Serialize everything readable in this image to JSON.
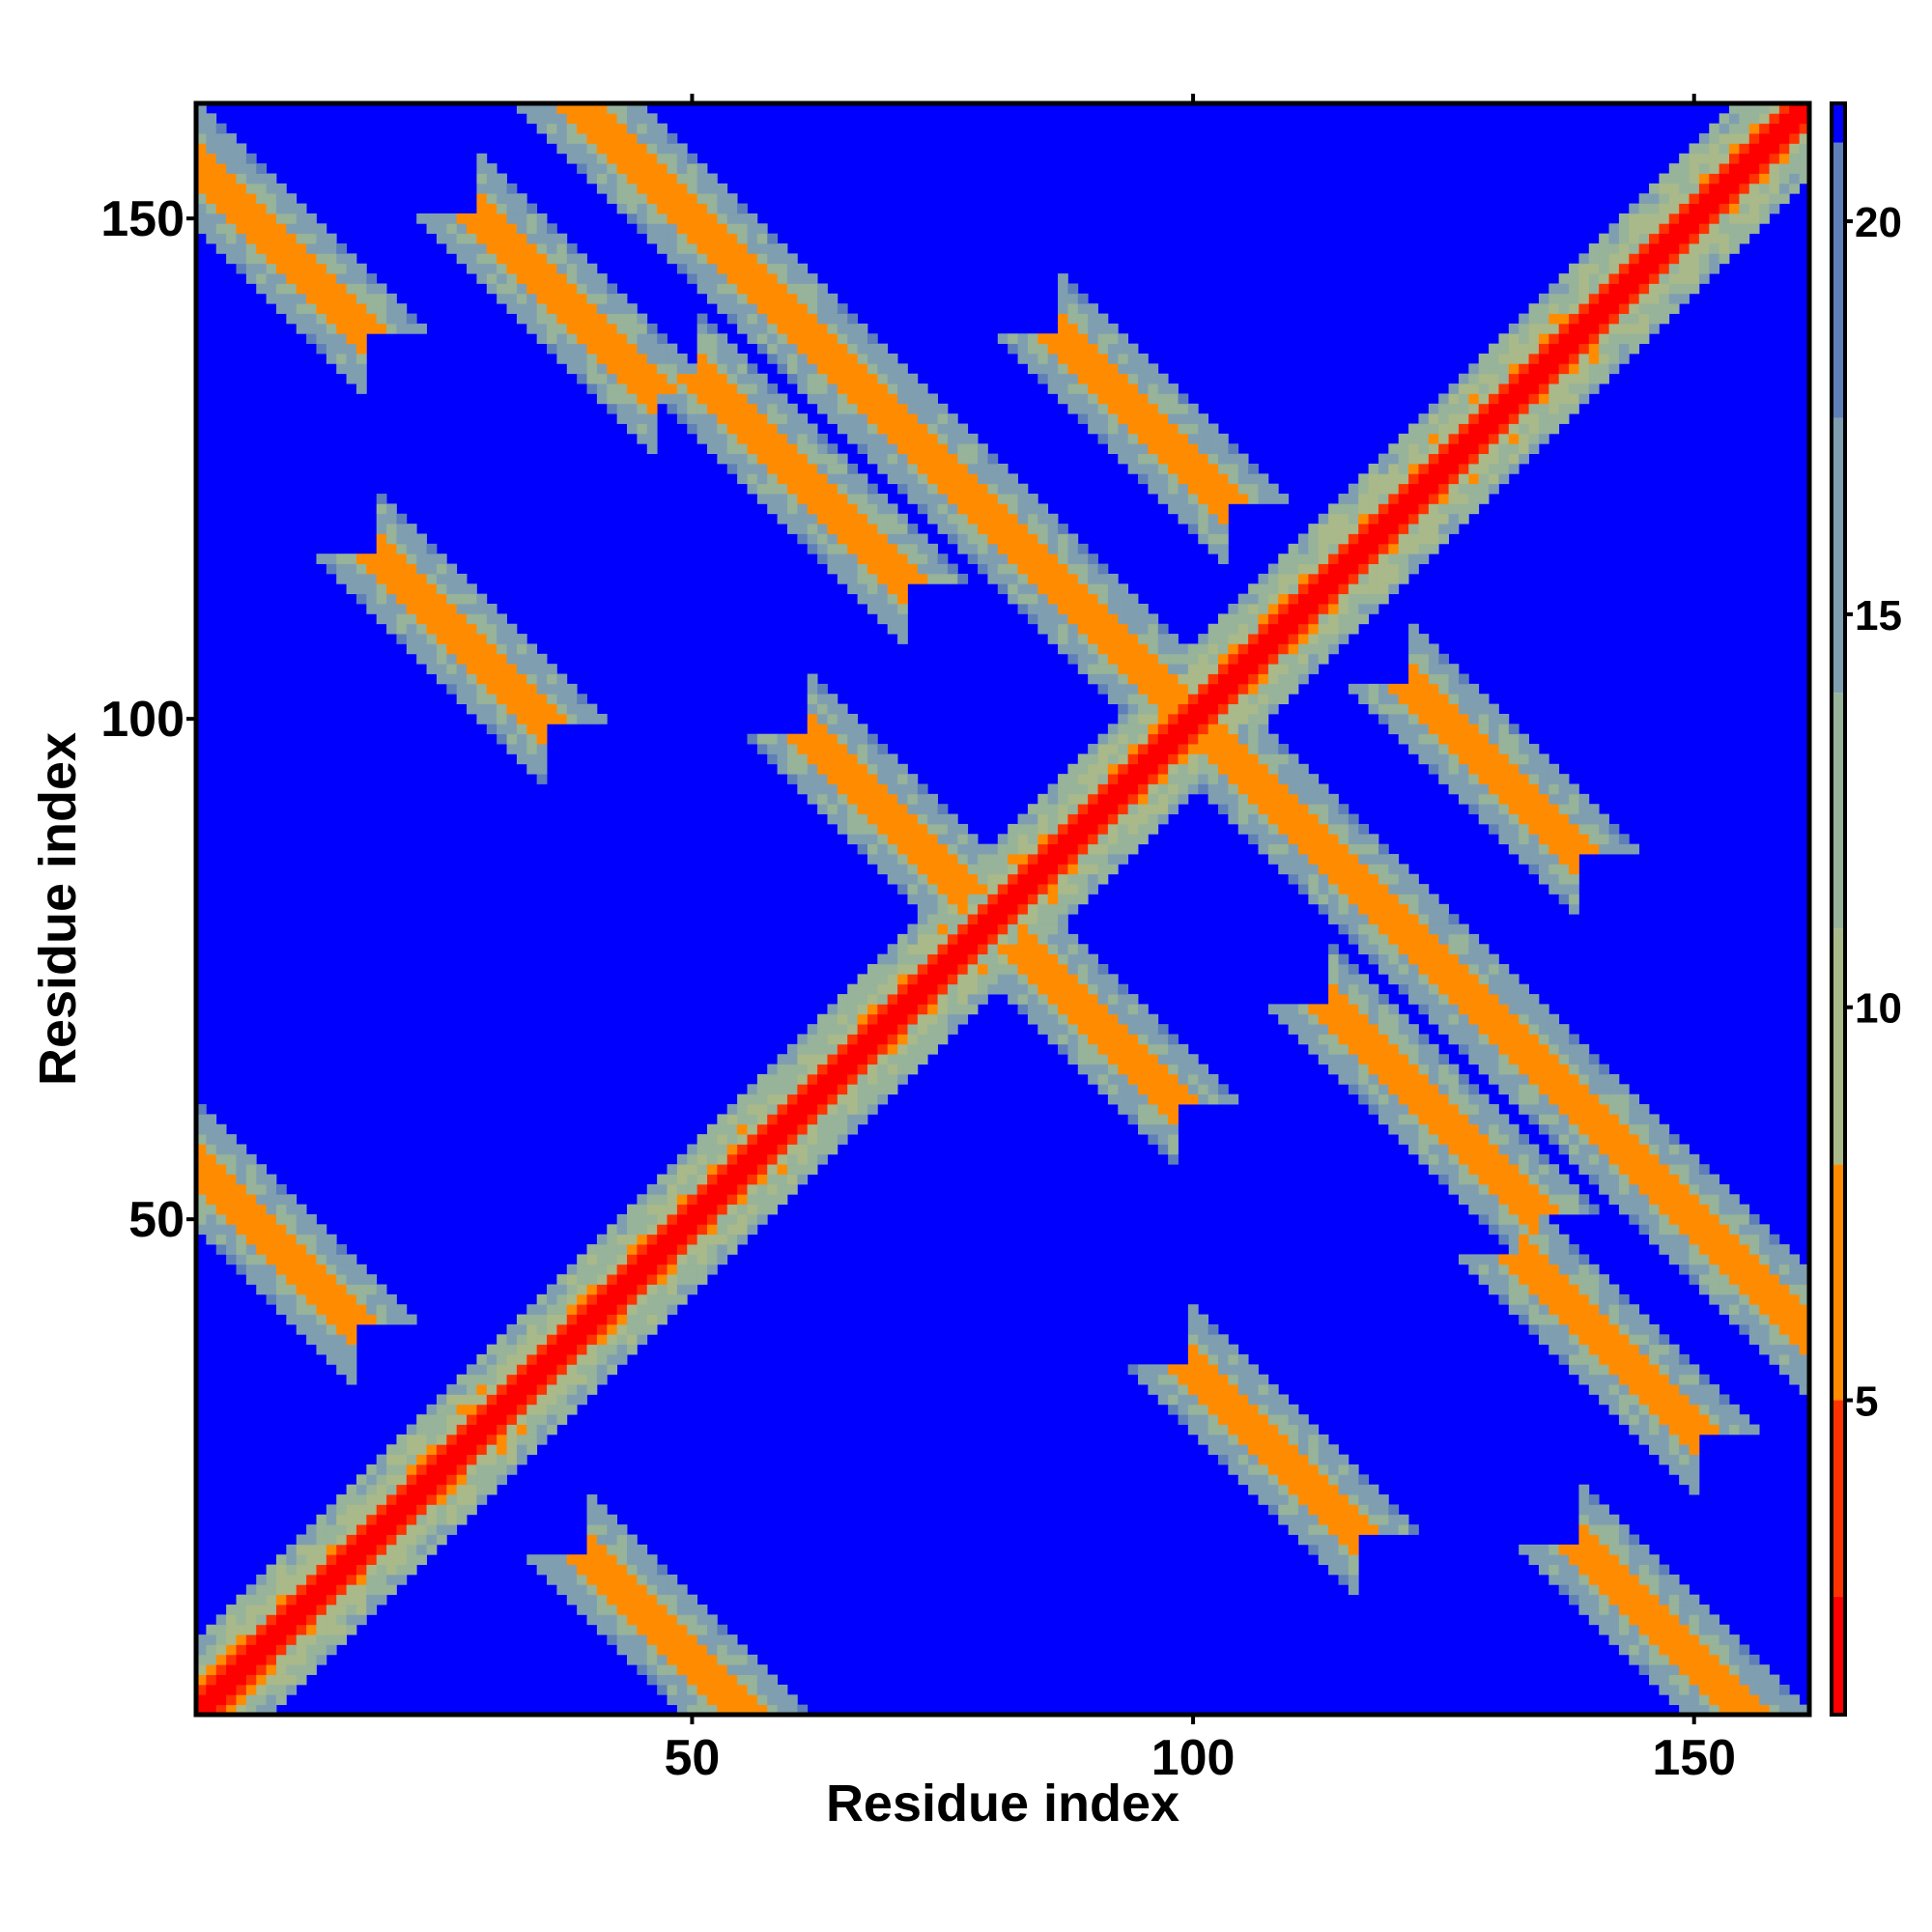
{
  "chart_data": {
    "type": "heatmap",
    "title": "",
    "xlabel": "Residue index",
    "ylabel": "Residue index",
    "n_residues": 161,
    "xlim": [
      1,
      161
    ],
    "ylim": [
      1,
      161
    ],
    "x_ticks": [
      50,
      100,
      150
    ],
    "y_ticks": [
      50,
      100,
      150
    ],
    "colorbar": {
      "ticks": [
        5,
        10,
        15,
        20
      ],
      "range": [
        1,
        21.5
      ],
      "bands": [
        {
          "from": 0,
          "to": 2.5,
          "color": "#ff0000"
        },
        {
          "from": 2.5,
          "to": 5,
          "color": "#ff3300"
        },
        {
          "from": 5,
          "to": 8,
          "color": "#ff8c00"
        },
        {
          "from": 8,
          "to": 11,
          "color": "#a9b98a"
        },
        {
          "from": 11,
          "to": 14,
          "color": "#97b39a"
        },
        {
          "from": 14,
          "to": 17.5,
          "color": "#7f9fb0"
        },
        {
          "from": 17.5,
          "to": 21,
          "color": "#5f7fb8"
        },
        {
          "from": 21,
          "to": 99,
          "color": "#0000ff"
        }
      ]
    },
    "background_value_note_color": "#0000ff",
    "contact_bands": [
      {
        "type": "anti",
        "sum": 200,
        "from": 28,
        "to": 62,
        "width": 1.4,
        "value": 6
      },
      {
        "type": "anti",
        "sum": 200,
        "from": 82,
        "to": 95,
        "width": 1.4,
        "value": 6
      },
      {
        "type": "anti",
        "sum": 200,
        "from": 105,
        "to": 118,
        "width": 1.4,
        "value": 6
      },
      {
        "type": "anti",
        "sum": 200,
        "from": 138,
        "to": 172,
        "width": 1.4,
        "value": 6
      },
      {
        "type": "anti",
        "sum": 200,
        "from": 124,
        "to": 134,
        "width": 1.4,
        "value": 6
      },
      {
        "type": "anti",
        "sum": 200,
        "from": 66,
        "to": 76,
        "width": 1.4,
        "value": 6
      },
      {
        "type": "anti",
        "sum": 225,
        "from": 126,
        "to": 134,
        "width": 1.3,
        "value": 6
      },
      {
        "type": "anti",
        "sum": 225,
        "from": 91,
        "to": 99,
        "width": 1.3,
        "value": 6
      },
      {
        "type": "anti",
        "sum": 185,
        "from": 118,
        "to": 130,
        "width": 1.3,
        "value": 6
      },
      {
        "type": "anti",
        "sum": 185,
        "from": 55,
        "to": 67,
        "width": 1.3,
        "value": 6
      },
      {
        "type": "anti",
        "sum": 160,
        "from": 66,
        "to": 73,
        "width": 1.3,
        "value": 6
      },
      {
        "type": "anti",
        "sum": 160,
        "from": 87,
        "to": 94,
        "width": 1.3,
        "value": 6
      },
      {
        "type": "anti",
        "sum": 135,
        "from": 104,
        "to": 112,
        "width": 1.3,
        "value": 6
      },
      {
        "type": "anti",
        "sum": 135,
        "from": 23,
        "to": 31,
        "width": 1.3,
        "value": 6
      },
      {
        "type": "anti",
        "sum": 56,
        "from": 3,
        "to": 12,
        "width": 1.3,
        "value": 6
      },
      {
        "type": "anti",
        "sum": 56,
        "from": 44,
        "to": 53,
        "width": 1.3,
        "value": 6
      },
      {
        "type": "anti",
        "sum": 156,
        "from": 143,
        "to": 151,
        "width": 1.3,
        "value": 6
      },
      {
        "type": "anti",
        "sum": 156,
        "from": 5,
        "to": 13,
        "width": 1.3,
        "value": 6
      },
      {
        "type": "anti",
        "sum": 179,
        "from": 33,
        "to": 42,
        "width": 1.2,
        "value": 6
      },
      {
        "type": "anti",
        "sum": 179,
        "from": 137,
        "to": 146,
        "width": 1.2,
        "value": 6
      }
    ],
    "diagonal": {
      "width": 2.5,
      "value": 1
    }
  }
}
